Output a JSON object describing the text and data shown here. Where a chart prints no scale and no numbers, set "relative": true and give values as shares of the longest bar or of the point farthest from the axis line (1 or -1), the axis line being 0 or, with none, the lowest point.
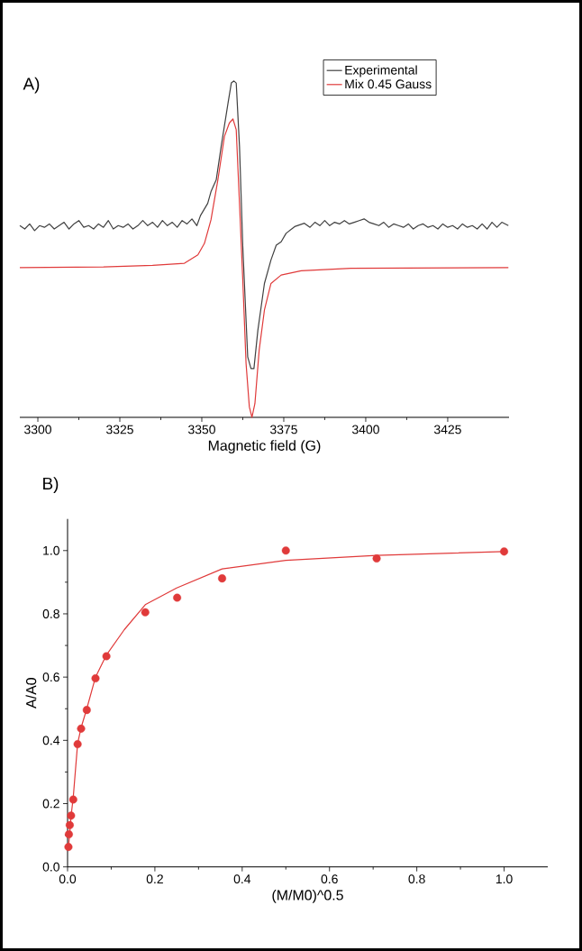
{
  "chart_data": [
    {
      "type": "line",
      "title": "A)",
      "xlabel": "Magnetic field (G)",
      "relative": true,
      "legend": "top right",
      "xlim": [
        3294.5,
        3443.7
      ],
      "xticks": [
        3300,
        3325,
        3350,
        3375,
        3400,
        3425
      ],
      "series": [
        {
          "name": "Experimental",
          "color": "#404040",
          "x": [
            3294.5,
            3296,
            3297.5,
            3299,
            3300.5,
            3302,
            3303.5,
            3305,
            3306.5,
            3308,
            3309.5,
            3311,
            3312.5,
            3314,
            3315.5,
            3317,
            3318.5,
            3320,
            3321.5,
            3323,
            3324.5,
            3326,
            3327.5,
            3329,
            3330.5,
            3332,
            3333.5,
            3335,
            3336.5,
            3338,
            3339.5,
            3341,
            3342.5,
            3344,
            3345.5,
            3347,
            3348.5,
            3349.6,
            3351.8,
            3352.8,
            3354.4,
            3355.9,
            3358,
            3359,
            3359.8,
            3360.5,
            3361.5,
            3362.5,
            3364,
            3365,
            3365.9,
            3367.1,
            3369.1,
            3371.1,
            3372.7,
            3374.2,
            3375.7,
            3378.3,
            3381.3,
            3383,
            3384.5,
            3386,
            3387.5,
            3389,
            3390.5,
            3392,
            3393.5,
            3395,
            3396.5,
            3398,
            3399.5,
            3401,
            3402.5,
            3404,
            3405.5,
            3407,
            3408.5,
            3410,
            3411.5,
            3413,
            3414.5,
            3416,
            3417.5,
            3419,
            3420.5,
            3422,
            3423.5,
            3425,
            3426.5,
            3428,
            3429.5,
            3431,
            3432.5,
            3434,
            3435.5,
            3437,
            3438.5,
            3440,
            3441.5,
            3443.5
          ],
          "values": [
            0.57,
            0.56,
            0.575,
            0.555,
            0.57,
            0.565,
            0.575,
            0.56,
            0.57,
            0.58,
            0.56,
            0.575,
            0.585,
            0.565,
            0.57,
            0.56,
            0.575,
            0.565,
            0.585,
            0.56,
            0.57,
            0.565,
            0.575,
            0.56,
            0.57,
            0.585,
            0.57,
            0.58,
            0.565,
            0.585,
            0.57,
            0.58,
            0.565,
            0.585,
            0.575,
            0.59,
            0.57,
            0.6,
            0.636,
            0.671,
            0.706,
            0.805,
            0.934,
            0.994,
            1.0,
            0.994,
            0.805,
            0.508,
            0.18,
            0.145,
            0.145,
            0.259,
            0.398,
            0.468,
            0.512,
            0.522,
            0.547,
            0.567,
            0.577,
            0.565,
            0.58,
            0.57,
            0.585,
            0.57,
            0.58,
            0.575,
            0.585,
            0.575,
            0.58,
            0.585,
            0.59,
            0.58,
            0.575,
            0.57,
            0.58,
            0.565,
            0.575,
            0.57,
            0.565,
            0.575,
            0.56,
            0.57,
            0.575,
            0.565,
            0.57,
            0.56,
            0.575,
            0.565,
            0.57,
            0.56,
            0.575,
            0.565,
            0.57,
            0.56,
            0.575,
            0.56,
            0.58,
            0.565,
            0.58,
            0.57
          ]
        },
        {
          "name": "Mix 0.45 Gauss",
          "color": "#e03a3a",
          "x": [
            3294.5,
            3320,
            3335,
            3344.7,
            3348.8,
            3350.8,
            3352.8,
            3354.9,
            3356.9,
            3358.4,
            3359.5,
            3360.5,
            3361.5,
            3362.5,
            3363.5,
            3364.5,
            3365.3,
            3366.2,
            3367.5,
            3369.1,
            3371.1,
            3374.2,
            3380.3,
            3395.5,
            3443.5
          ],
          "values": [
            0.445,
            0.447,
            0.452,
            0.458,
            0.483,
            0.517,
            0.587,
            0.706,
            0.835,
            0.875,
            0.887,
            0.855,
            0.636,
            0.408,
            0.16,
            0.031,
            0,
            0.041,
            0.2,
            0.319,
            0.398,
            0.423,
            0.436,
            0.443,
            0.445
          ]
        }
      ]
    },
    {
      "type": "scatter",
      "title": "B)",
      "xlabel": "(M/M0)^0.5",
      "ylabel": "A/A0",
      "xlim": [
        0,
        1.1
      ],
      "ylim": [
        0,
        1.1
      ],
      "xticks": [
        {
          "value": 0,
          "label": "0.0"
        },
        0.2,
        0.4,
        0.6,
        0.8,
        {
          "value": 1,
          "label": "1.0"
        }
      ],
      "yticks": [
        {
          "value": 0,
          "label": "0.0"
        },
        0.2,
        0.4,
        0.6,
        0.8,
        {
          "value": 1,
          "label": "1.0"
        }
      ],
      "series": [
        {
          "color": "#e03a3a",
          "marker": "circle",
          "x": [
            0.002,
            0.003,
            0.005,
            0.008,
            0.013,
            0.023,
            0.031,
            0.044,
            0.064,
            0.089,
            0.178,
            0.251,
            0.354,
            0.5,
            0.708,
            1.0
          ],
          "values": [
            0.063,
            0.103,
            0.132,
            0.162,
            0.213,
            0.388,
            0.437,
            0.496,
            0.596,
            0.666,
            0.805,
            0.851,
            0.912,
            1.0,
            0.975,
            0.997
          ]
        },
        {
          "type": "line",
          "color": "#e03a3a",
          "marker": "none",
          "x": [
            0.002,
            0.008,
            0.013,
            0.023,
            0.031,
            0.044,
            0.064,
            0.089,
            0.13,
            0.178,
            0.25,
            0.354,
            0.5,
            0.708,
            1.0
          ],
          "values": [
            0.06,
            0.16,
            0.22,
            0.39,
            0.44,
            0.5,
            0.6,
            0.67,
            0.75,
            0.829,
            0.882,
            0.942,
            0.969,
            0.985,
            0.997
          ]
        }
      ]
    }
  ]
}
